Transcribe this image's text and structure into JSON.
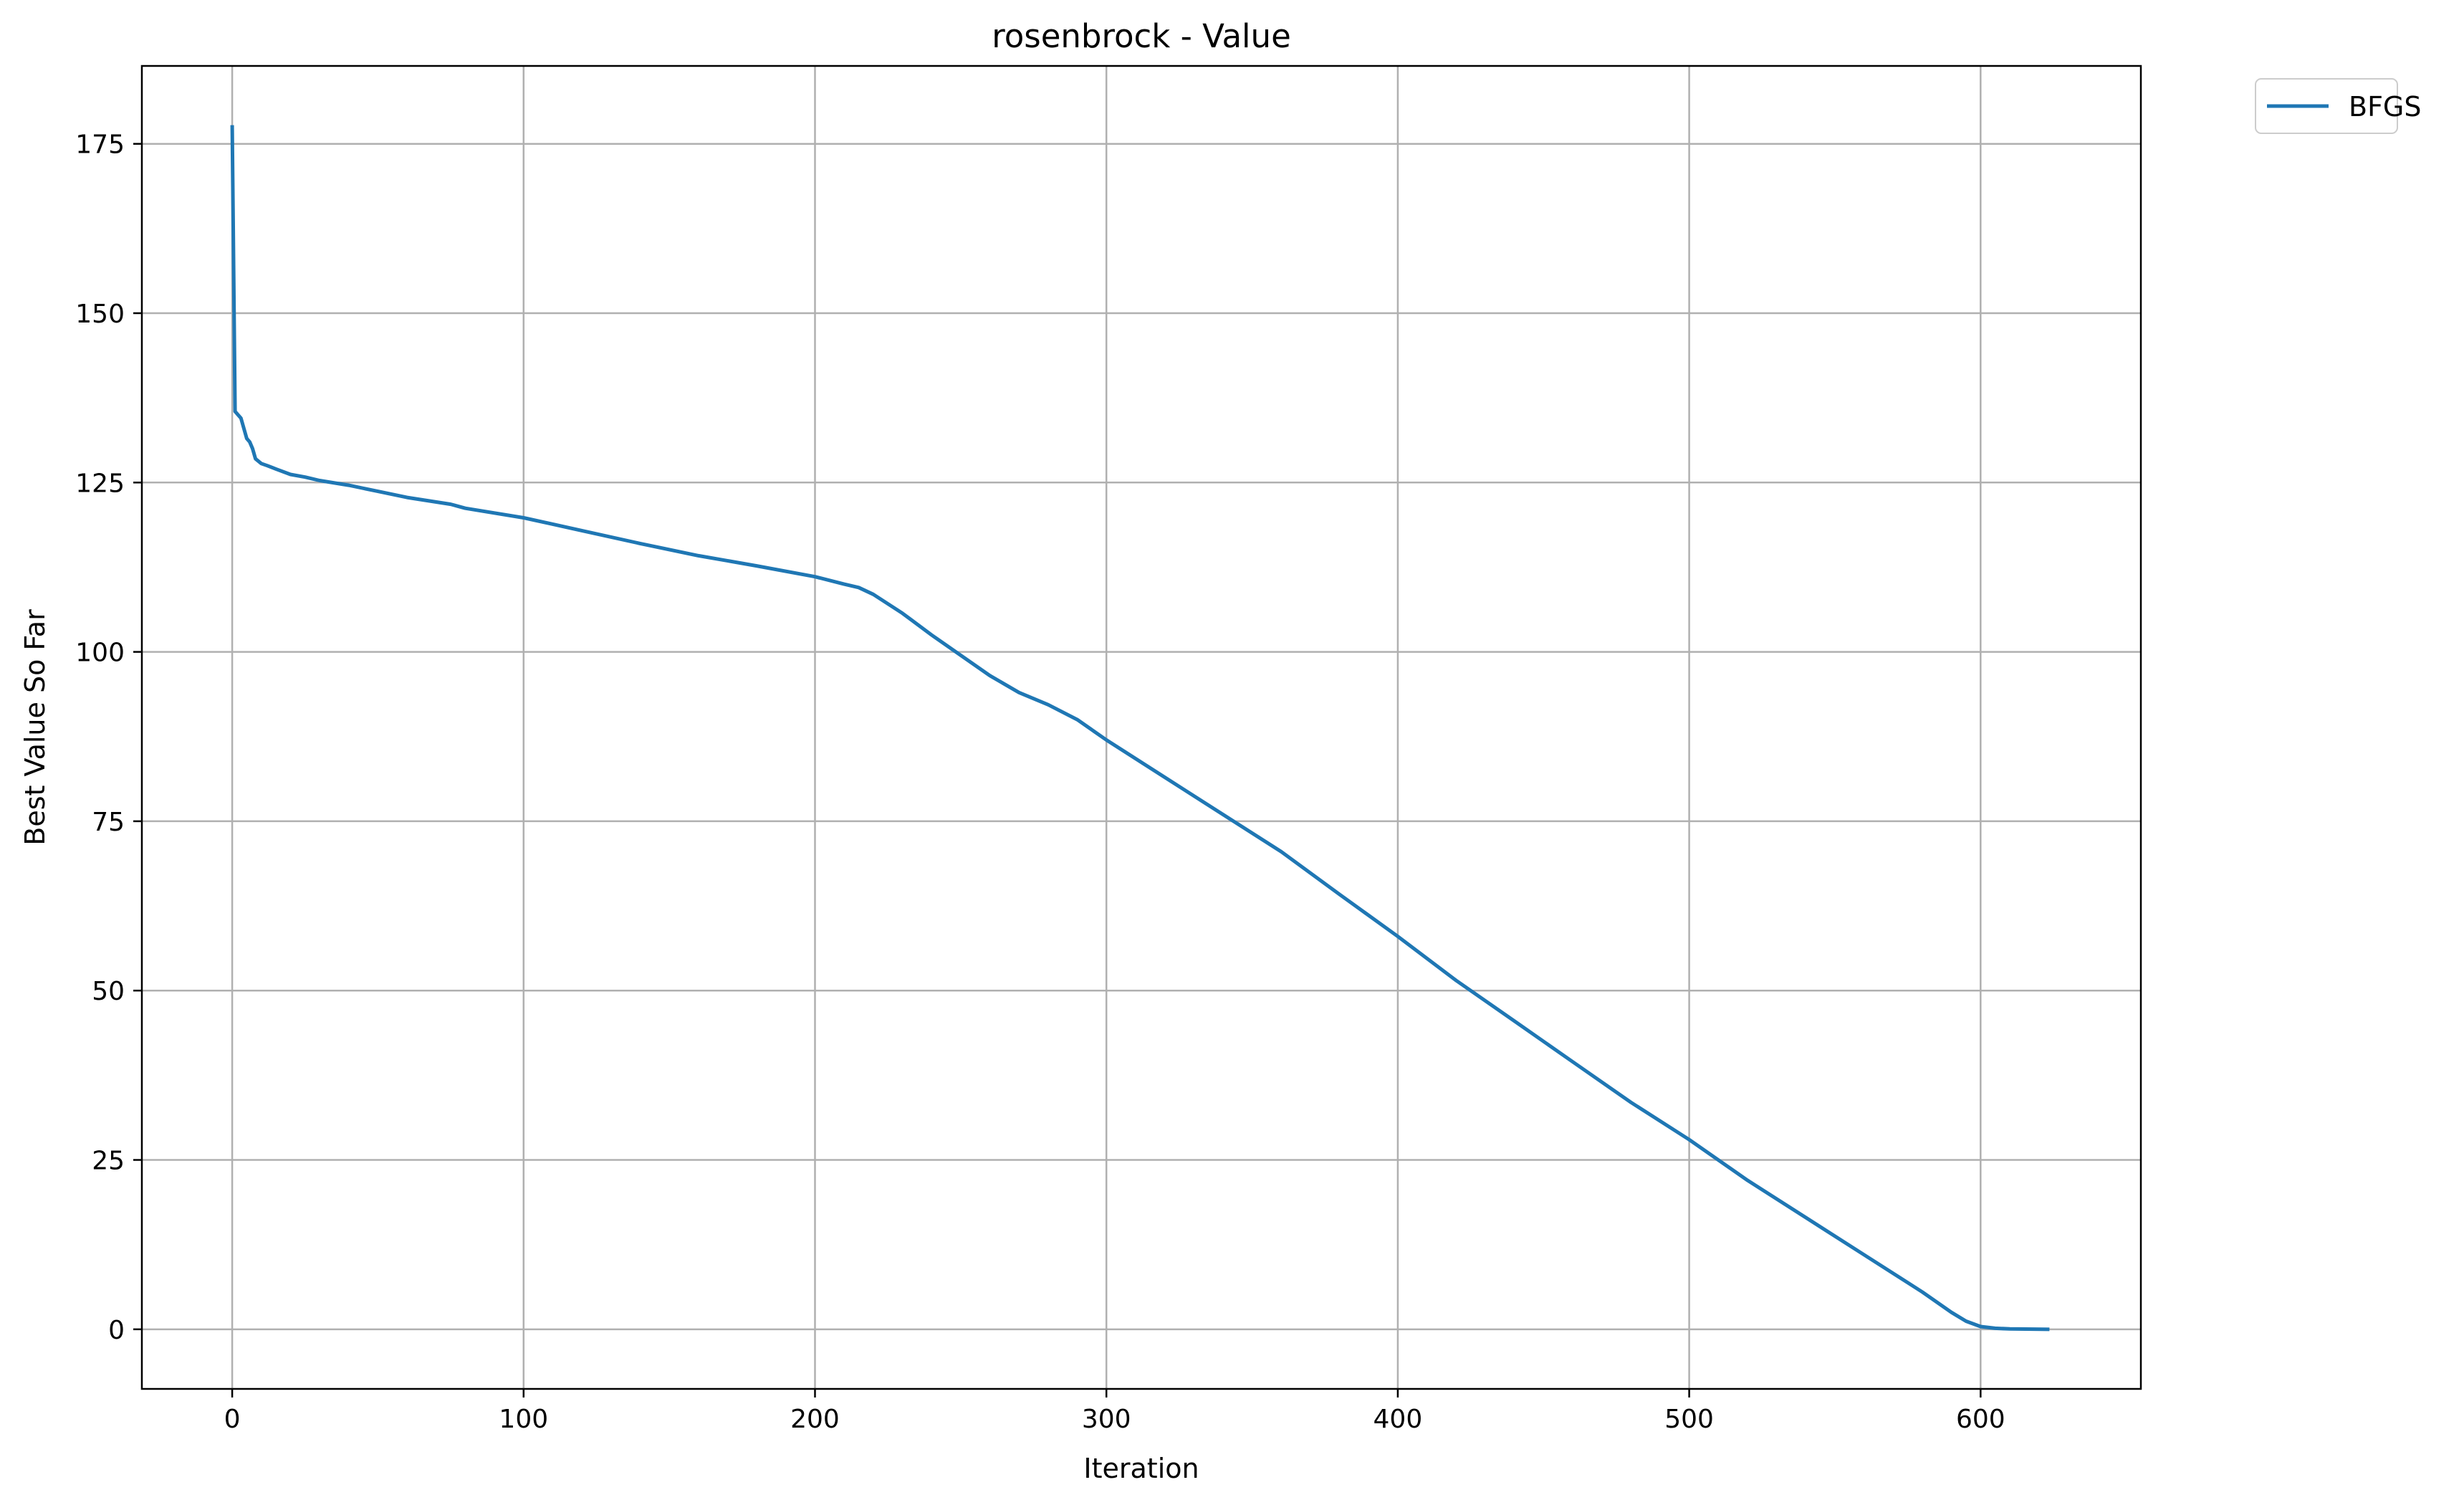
{
  "chart_data": {
    "type": "line",
    "title": "rosenbrock - Value",
    "xlabel": "Iteration",
    "ylabel": "Best Value So Far",
    "xlim": [
      -31,
      655
    ],
    "ylim": [
      -8.8,
      186.5
    ],
    "xticks": [
      0,
      100,
      200,
      300,
      400,
      500,
      600
    ],
    "yticks": [
      0,
      25,
      50,
      75,
      100,
      125,
      150,
      175
    ],
    "grid": true,
    "legend_position": "outside-top-right",
    "colors": {
      "series": "#1f77b4",
      "grid": "#b0b0b0",
      "axes": "#000000"
    },
    "series": [
      {
        "name": "BFGS",
        "x": [
          0,
          1,
          3,
          5,
          6,
          7,
          8,
          10,
          12,
          15,
          20,
          25,
          30,
          40,
          50,
          60,
          75,
          80,
          100,
          120,
          140,
          160,
          180,
          200,
          210,
          215,
          220,
          230,
          240,
          250,
          260,
          270,
          280,
          290,
          300,
          320,
          340,
          360,
          380,
          400,
          420,
          440,
          460,
          480,
          500,
          520,
          540,
          560,
          580,
          590,
          595,
          600,
          605,
          610,
          623
        ],
        "y": [
          177.5,
          135.5,
          134.5,
          131.5,
          131,
          130,
          128.5,
          127.8,
          127.5,
          127,
          126.2,
          125.8,
          125.3,
          124.6,
          123.7,
          122.8,
          121.8,
          121.2,
          119.8,
          117.9,
          116,
          114.2,
          112.7,
          111.1,
          110,
          109.5,
          108.5,
          105.7,
          102.5,
          99.5,
          96.5,
          94,
          92.2,
          90,
          87,
          81.5,
          76,
          70.5,
          64.2,
          58,
          51.5,
          45.5,
          39.5,
          33.5,
          28,
          22,
          16.5,
          11,
          5.5,
          2.5,
          1.2,
          0.4,
          0.15,
          0.05,
          0.0
        ]
      }
    ]
  }
}
